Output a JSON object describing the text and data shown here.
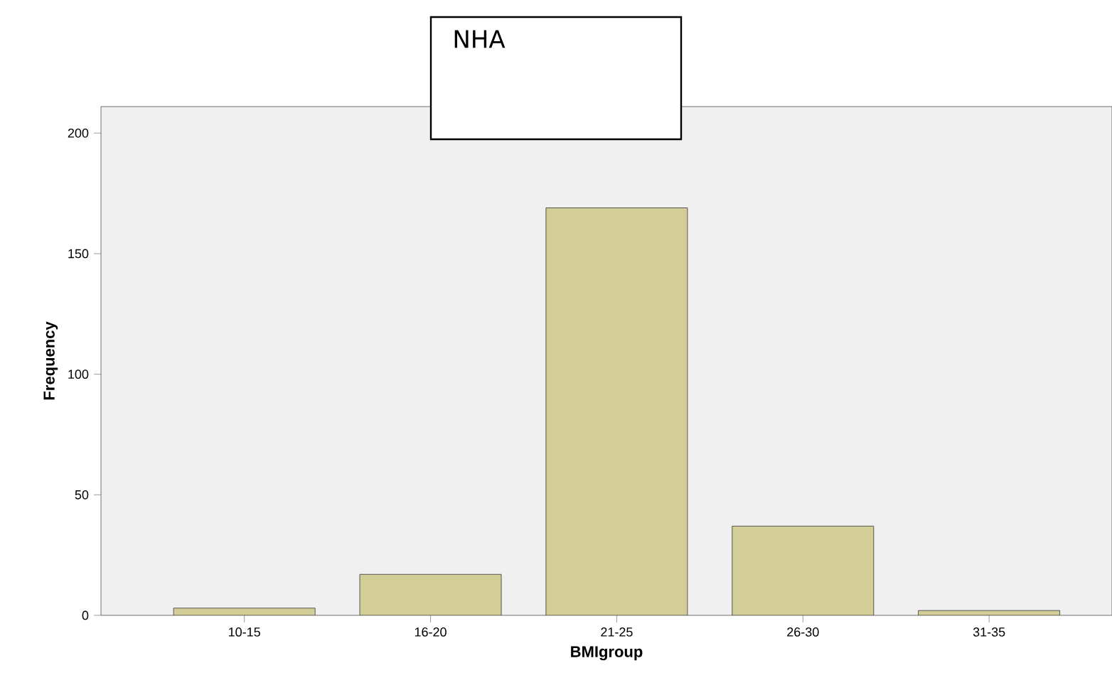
{
  "chart_data": {
    "type": "bar",
    "title": "NHA",
    "xlabel": "BMIgroup",
    "ylabel": "Frequency",
    "categories": [
      "10-15",
      "16-20",
      "21-25",
      "26-30",
      "31-35"
    ],
    "values": [
      3,
      17,
      169,
      37,
      2
    ],
    "color": "#d3ce97",
    "ylim": [
      0,
      211
    ],
    "yticks": [
      0,
      50,
      100,
      150,
      200
    ],
    "grid": false
  }
}
